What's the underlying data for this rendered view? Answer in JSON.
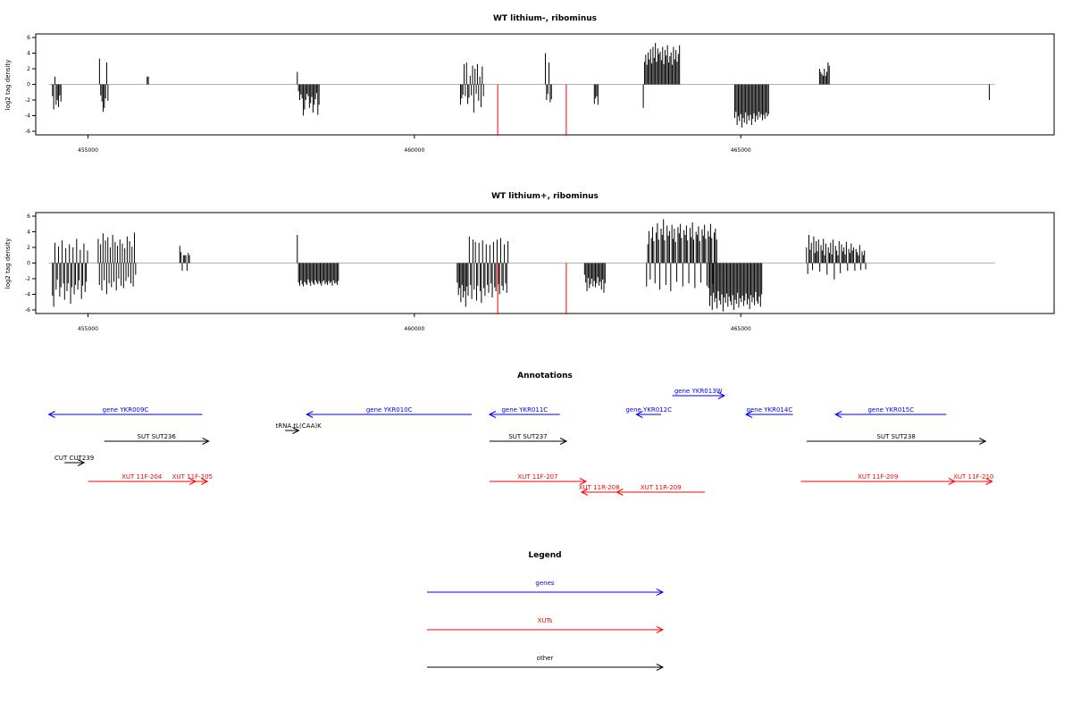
{
  "chart_data": [
    {
      "type": "bar",
      "title": "WT lithium-, ribominus",
      "ylabel": "log2 tag density",
      "xlim": [
        454200,
        469800
      ],
      "ylim": [
        -7,
        6
      ],
      "x_ticks": [
        455000,
        460000,
        465000
      ],
      "x_tick_labels": [
        "455000",
        "460000",
        "465000"
      ],
      "y_ticks": [
        6,
        4,
        2,
        0,
        -2,
        -4,
        -6
      ],
      "y_tick_labels": [
        "6",
        "4",
        "2",
        "0",
        "-2",
        "-4",
        "-6"
      ],
      "baseline_range": [
        454400,
        468900
      ],
      "highlights": [
        {
          "x": 461270,
          "value": -6.6
        },
        {
          "x": 462320,
          "value": -6.6
        }
      ],
      "highlight_color": "#ff0000",
      "bar_color": "#000000",
      "series": [
        {
          "x": 454450,
          "values": [
            -1.5,
            -3.2,
            1.0,
            -2.6,
            -2.0,
            -2.9,
            -1.4,
            -2.2
          ]
        },
        {
          "x": 455170,
          "values": [
            3.3,
            -1.4,
            -2.2,
            -3.5,
            -3.0,
            -1.8,
            2.8,
            -2.1
          ]
        },
        {
          "x": 455900,
          "values": [
            1.0,
            1.0
          ]
        },
        {
          "x": 458200,
          "values": [
            1.6,
            -0.9,
            -2.0,
            -1.3,
            -1.8,
            -4.0,
            -3.2,
            -2.0,
            -1.2,
            -1.5,
            -3.0,
            -2.4,
            -1.6,
            -3.6,
            -2.6,
            -1.9,
            -1.1,
            -3.9,
            -2.6
          ]
        },
        {
          "x": 460700,
          "values": [
            -2.6,
            -1.8,
            -1.3,
            2.6,
            -1.5,
            2.8,
            -2.5,
            -1.7,
            1.1,
            -1.4,
            2.4,
            -3.6,
            2.0,
            -1.2,
            2.6,
            -2.1,
            1.0,
            -2.9,
            2.3,
            -1.5
          ]
        },
        {
          "x": 462000,
          "values": [
            4.0,
            -2.0,
            -1.2,
            2.8,
            -2.3,
            -1.9
          ]
        },
        {
          "x": 462750,
          "values": [
            -2.5,
            -1.8,
            -1.5,
            -2.6
          ]
        },
        {
          "x": 463500,
          "values": [
            -3.0,
            2.9,
            3.8,
            2.5,
            4.1,
            3.2,
            4.5,
            2.7,
            4.8,
            3.4,
            5.3,
            2.9,
            4.6,
            3.9,
            4.2,
            3.1,
            4.8,
            2.6,
            4.4,
            3.7,
            5.0,
            2.8,
            3.6,
            4.1,
            2.5,
            4.8,
            3.2,
            4.4,
            2.9,
            3.9,
            5.0
          ]
        },
        {
          "x": 464900,
          "values": [
            -4.3,
            -3.5,
            -5.2,
            -4.1,
            -4.7,
            -3.8,
            -5.5,
            -4.3,
            -4.9,
            -3.6,
            -5.1,
            -4.0,
            -4.6,
            -3.9,
            -5.2,
            -4.4,
            -3.7,
            -4.8,
            -4.0,
            -4.5,
            -3.5,
            -4.2,
            -3.8,
            -4.6,
            -3.9,
            -4.4,
            -3.6,
            -4.1,
            -3.8
          ]
        },
        {
          "x": 466200,
          "values": [
            2.0,
            1.6,
            1.3,
            1.1,
            2.0,
            1.1,
            1.6,
            2.8,
            2.4
          ]
        },
        {
          "x": 468800,
          "values": [
            -2.0
          ]
        }
      ]
    },
    {
      "type": "bar",
      "title": "WT lithium+, ribominus",
      "ylabel": "log2 tag density",
      "xlim": [
        454200,
        469800
      ],
      "ylim": [
        -7,
        6
      ],
      "x_ticks": [
        455000,
        460000,
        465000
      ],
      "x_tick_labels": [
        "455000",
        "460000",
        "465000"
      ],
      "y_ticks": [
        6,
        4,
        2,
        0,
        -2,
        -4,
        -6
      ],
      "y_tick_labels": [
        "6",
        "4",
        "2",
        "0",
        "-2",
        "-4",
        "-6"
      ],
      "baseline_range": [
        454400,
        468900
      ],
      "highlights": [
        {
          "x": 461270,
          "value": -6.6
        },
        {
          "x": 462320,
          "value": -6.6
        }
      ],
      "highlight_color": "#ff0000",
      "bar_color": "#000000",
      "series": [
        {
          "x": 454450,
          "values": [
            -4.2,
            -5.6,
            2.6,
            -3.4,
            -2.1,
            2.1,
            -4.3,
            -3.1,
            2.9,
            -2.6,
            -4.7,
            1.9,
            -3.6,
            -2.6,
            2.4,
            -5.2,
            -3.1,
            2.0,
            -4.0,
            -2.8,
            3.1,
            -3.4,
            -2.2,
            1.7,
            -4.6,
            -2.9,
            2.5,
            -3.7,
            -2.4,
            1.6
          ]
        },
        {
          "x": 455150,
          "values": [
            3.1,
            -2.8,
            2.4,
            -3.5,
            3.8,
            -2.2,
            2.9,
            -4.0,
            3.3,
            -2.6,
            2.0,
            -3.1,
            3.6,
            -2.4,
            2.7,
            -3.5,
            2.2,
            -2.0,
            3.0,
            -2.9,
            2.5,
            -3.2,
            1.9,
            -2.3,
            3.4,
            -1.8,
            2.8,
            -2.6,
            2.1,
            -3.0,
            3.9,
            -1.5
          ]
        },
        {
          "x": 456400,
          "values": [
            2.2,
            1.4,
            -1.0,
            1.0,
            1.0,
            1.0,
            -1.0,
            1.3,
            1.0
          ]
        },
        {
          "x": 458200,
          "values": [
            3.6,
            -2.5,
            -2.9,
            -2.2,
            -2.7,
            -3.0,
            -2.4,
            -2.6,
            -2.8,
            -2.1,
            -2.5,
            -2.9,
            -2.3,
            -2.6,
            -2.8,
            -2.2,
            -2.5,
            -2.7,
            -2.3,
            -2.6,
            -2.9,
            -2.4,
            -2.2,
            -2.7,
            -2.5,
            -2.8,
            -2.3,
            -2.6,
            -2.4,
            -2.9,
            -2.2,
            -2.6,
            -2.5,
            -2.8,
            -2.3
          ]
        },
        {
          "x": 460650,
          "values": [
            -2.5,
            -4.1,
            -3.2,
            -5.0,
            -2.8,
            -4.4,
            -3.6,
            -5.6,
            -3.0,
            -4.2,
            3.4,
            -2.8,
            -4.6,
            3.0,
            -3.4,
            2.7,
            -4.8,
            -2.9,
            2.6,
            -3.6,
            -5.1,
            2.9,
            -3.2,
            -4.2,
            2.4,
            -2.8,
            -3.8,
            2.3,
            -2.6,
            -4.4,
            2.7,
            -3.1,
            -3.6,
            3.0,
            -2.7,
            -4.0,
            3.2,
            -2.9,
            -3.5,
            2.4,
            -2.6,
            -3.8,
            2.8
          ]
        },
        {
          "x": 462600,
          "values": [
            -1.5,
            -2.5,
            -3.6,
            -1.9,
            -3.2,
            -2.7,
            -2.0,
            -3.0,
            -2.3,
            -3.1,
            -2.6,
            -1.8,
            -2.9,
            -2.4,
            -3.4,
            -2.1,
            -3.8,
            -2.6
          ]
        },
        {
          "x": 463550,
          "values": [
            -3.0,
            2.4,
            4.1,
            -2.1,
            3.2,
            4.6,
            2.8,
            -2.6,
            3.9,
            5.1,
            3.0,
            -3.4,
            4.4,
            3.6,
            5.6,
            2.9,
            -2.8,
            4.8,
            3.5,
            4.1,
            -3.6,
            4.9,
            3.1,
            4.4,
            2.7,
            -2.4,
            4.6,
            3.8,
            5.0,
            3.2,
            -3.0,
            4.2,
            3.6,
            4.8,
            2.9,
            -2.6,
            4.5,
            3.3,
            5.2,
            3.0,
            -3.2,
            4.0,
            3.6,
            4.7,
            2.8,
            -2.5,
            4.3,
            3.5,
            4.9,
            3.1,
            -2.9,
            4.1,
            3.4,
            5.0,
            3.2,
            -2.7,
            3.9,
            4.4,
            3.0
          ]
        },
        {
          "x": 464500,
          "values": [
            -3.2,
            -5.5,
            -4.2,
            -6.0,
            -3.8,
            -5.0,
            -4.5,
            -5.8,
            -3.6,
            -4.8,
            -5.3,
            -4.0,
            -6.2,
            -4.4,
            -5.1,
            -3.9,
            -5.6,
            -4.3,
            -4.9,
            -5.4,
            -4.1,
            -6.0,
            -4.7,
            -5.2,
            -3.8,
            -5.7,
            -4.5,
            -5.0,
            -4.2,
            -5.5,
            -4.8,
            -3.9,
            -5.3,
            -4.6,
            -5.9,
            -4.1,
            -5.0,
            -4.4,
            -5.4,
            -3.7,
            -4.9,
            -5.2,
            -4.3,
            -5.6,
            -4.0
          ]
        },
        {
          "x": 466000,
          "values": [
            2.0,
            -1.4,
            3.6,
            1.7,
            2.6,
            -0.9,
            3.4,
            1.3,
            2.8,
            1.5,
            3.0,
            -1.1,
            2.3,
            1.6,
            3.1,
            1.0,
            2.5,
            -1.5,
            2.0,
            1.3,
            2.6,
            1.1,
            3.0,
            -2.1,
            2.2,
            1.6,
            1.0,
            2.8,
            -1.3,
            2.4,
            1.5,
            2.0,
            1.1,
            2.7,
            -1.0,
            1.8,
            1.3,
            2.5,
            1.6,
            2.0,
            -1.0,
            1.8,
            1.4,
            1.0,
            2.3,
            -0.9,
            1.5,
            1.0,
            1.6,
            -0.8
          ]
        }
      ]
    }
  ],
  "annotations": {
    "title": "Annotations",
    "xlim": [
      454200,
      469800
    ],
    "features": [
      {
        "label": "gene YKR009C",
        "x1": 456750,
        "x2": 454400,
        "level": 0,
        "color": "#0000ff"
      },
      {
        "label": "tRNA tL(CAA)K",
        "x1": 458020,
        "x2": 458230,
        "level": 0.6,
        "color": "#000000",
        "label_left": true
      },
      {
        "label": "gene YKR010C",
        "x1": 460880,
        "x2": 458350,
        "level": 0,
        "color": "#0000ff"
      },
      {
        "label": "gene YKR011C",
        "x1": 462230,
        "x2": 461150,
        "level": 0,
        "color": "#0000ff"
      },
      {
        "label": "gene YKR012C",
        "x1": 463780,
        "x2": 463400,
        "level": 0,
        "color": "#0000ff"
      },
      {
        "label": "gene YKR013W",
        "x1": 463950,
        "x2": 464750,
        "level": -0.7,
        "color": "#0000ff"
      },
      {
        "label": "gene YKR014C",
        "x1": 465800,
        "x2": 465080,
        "level": 0,
        "color": "#0000ff"
      },
      {
        "label": "gene YKR015C",
        "x1": 468150,
        "x2": 466450,
        "level": 0,
        "color": "#0000ff"
      },
      {
        "label": "SUT SUT236",
        "x1": 455250,
        "x2": 456850,
        "level": 1,
        "color": "#000000"
      },
      {
        "label": "SUT SUT237",
        "x1": 461150,
        "x2": 462330,
        "level": 1,
        "color": "#000000"
      },
      {
        "label": "SUT SUT238",
        "x1": 466010,
        "x2": 468750,
        "level": 1,
        "color": "#000000"
      },
      {
        "label": "CUT CUT239",
        "x1": 454640,
        "x2": 454940,
        "level": 1.8,
        "color": "#000000"
      },
      {
        "label": "XUT 11F-204",
        "x1": 455000,
        "x2": 456650,
        "level": 2.5,
        "color": "#ff0000"
      },
      {
        "label": "XUT 11F-205",
        "x1": 456370,
        "x2": 456830,
        "level": 2.5,
        "color": "#ff0000"
      },
      {
        "label": "XUT 11F-207",
        "x1": 461150,
        "x2": 462630,
        "level": 2.5,
        "color": "#ff0000"
      },
      {
        "label": "XUT 11R-208",
        "x1": 463100,
        "x2": 462560,
        "level": 2.9,
        "color": "#ff0000"
      },
      {
        "label": "XUT 11R-209",
        "x1": 464450,
        "x2": 463100,
        "level": 2.9,
        "color": "#ff0000"
      },
      {
        "label": "XUT 11F-209",
        "x1": 465920,
        "x2": 468280,
        "level": 2.5,
        "color": "#ff0000"
      },
      {
        "label": "XUT 11F-210",
        "x1": 468280,
        "x2": 468850,
        "level": 2.5,
        "color": "#ff0000"
      }
    ]
  },
  "legend": {
    "title": "Legend",
    "items": [
      {
        "label": "genes",
        "color": "#0000ff"
      },
      {
        "label": "XUTs",
        "color": "#ff0000"
      },
      {
        "label": "other",
        "color": "#000000"
      }
    ]
  }
}
